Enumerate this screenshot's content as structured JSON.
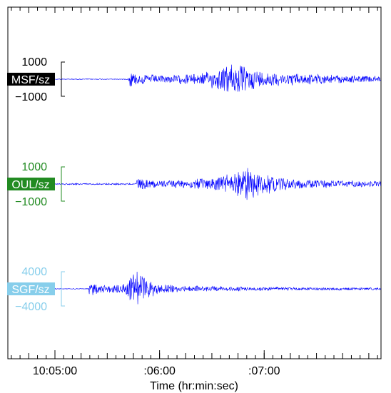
{
  "chart_data": {
    "type": "line",
    "title": "",
    "xlabel": "Time (hr:min:sec)",
    "ylabel": "",
    "x_ticks": [
      {
        "label": "10:05:00",
        "t": 65
      },
      {
        "label": ":06:00",
        "t": 125
      },
      {
        "label": ":07:00",
        "t": 185
      }
    ],
    "xlim": [
      38,
      252
    ],
    "grid": false,
    "series": [
      {
        "name": "MSF/sz",
        "color": "#0000ff",
        "label_bg": "#000000",
        "label_fg": "#ffffff",
        "scale_color": "#000000",
        "scale_top": "1000",
        "scale_bottom": "−1000",
        "onset_t": 108,
        "peak_t": 168,
        "envelope": [
          [
            38,
            0.01
          ],
          [
            107,
            0.01
          ],
          [
            108,
            0.22
          ],
          [
            112,
            0.14
          ],
          [
            130,
            0.1
          ],
          [
            150,
            0.16
          ],
          [
            160,
            0.3
          ],
          [
            168,
            0.45
          ],
          [
            175,
            0.3
          ],
          [
            190,
            0.18
          ],
          [
            210,
            0.14
          ],
          [
            230,
            0.1
          ],
          [
            252,
            0.08
          ]
        ]
      },
      {
        "name": "OUL/sz",
        "color": "#0000ff",
        "label_bg": "#228b22",
        "label_fg": "#ffffff",
        "scale_color": "#228b22",
        "scale_top": "1000",
        "scale_bottom": "−1000",
        "onset_t": 112,
        "peak_t": 176,
        "envelope": [
          [
            38,
            0.02
          ],
          [
            111,
            0.02
          ],
          [
            112,
            0.14
          ],
          [
            130,
            0.1
          ],
          [
            150,
            0.14
          ],
          [
            160,
            0.22
          ],
          [
            168,
            0.3
          ],
          [
            176,
            0.45
          ],
          [
            184,
            0.28
          ],
          [
            200,
            0.14
          ],
          [
            220,
            0.1
          ],
          [
            252,
            0.07
          ]
        ]
      },
      {
        "name": "SGF/sz",
        "color": "#0000ff",
        "label_bg": "#87ceeb",
        "label_fg": "#ffffff",
        "scale_color": "#87ceeb",
        "scale_top": "4000",
        "scale_bottom": "−4000",
        "onset_t": 85,
        "peak_t": 113,
        "envelope": [
          [
            38,
            0.01
          ],
          [
            84,
            0.01
          ],
          [
            85,
            0.22
          ],
          [
            92,
            0.1
          ],
          [
            105,
            0.14
          ],
          [
            110,
            0.4
          ],
          [
            113,
            0.52
          ],
          [
            118,
            0.22
          ],
          [
            130,
            0.1
          ],
          [
            150,
            0.07
          ],
          [
            200,
            0.04
          ],
          [
            252,
            0.03
          ]
        ]
      }
    ]
  }
}
